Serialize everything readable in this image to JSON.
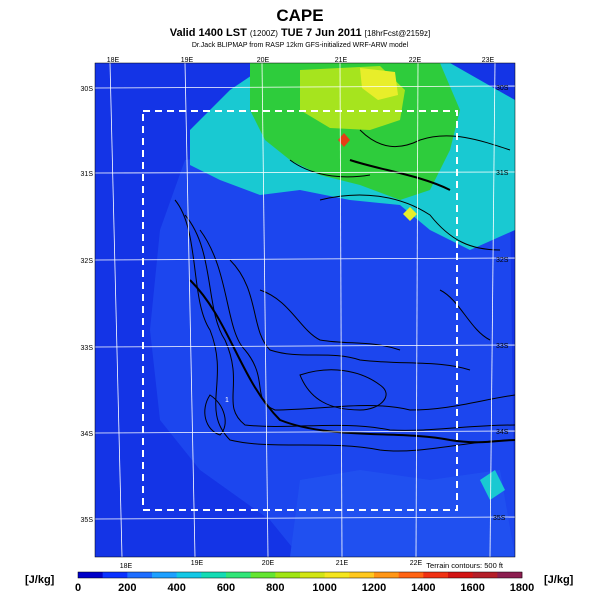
{
  "header": {
    "title": "CAPE",
    "subtitle_main": "Valid 1400 LST",
    "subtitle_utc": "(1200Z)",
    "subtitle_date": "TUE 7 Jun 2011",
    "subtitle_fcst": "[18hrFcst@2159z]",
    "credit": "Dr.Jack BLIPMAP from RASP 12km GFS-initialized WRF-ARW model"
  },
  "map": {
    "lon_labels_top": [
      "18E",
      "19E",
      "20E",
      "21E",
      "22E",
      "23E"
    ],
    "lon_labels_bottom": [
      "18E",
      "19E",
      "20E",
      "21E",
      "22E"
    ],
    "lat_labels_left": [
      "30S",
      "31S",
      "32S",
      "33S",
      "34S",
      "35S"
    ],
    "lat_labels_right": [
      "30S",
      "31S",
      "32S",
      "33S",
      "34S",
      "35S"
    ],
    "marker_label": "1",
    "terrain_note": "Terrain contours: 500 ft",
    "colors": {
      "ocean": "#1434e6",
      "cape_mid": "#19c9d2",
      "cape_high": "#2ecc3c",
      "cape_peak": "#e8ee2a",
      "cape_spot": "#e63c16"
    }
  },
  "legend": {
    "unit_left": "[J/kg]",
    "unit_right": "[J/kg]",
    "ticks": [
      "0",
      "200",
      "400",
      "600",
      "800",
      "1000",
      "1200",
      "1400",
      "1600",
      "1800"
    ],
    "colors": [
      "#0000c8",
      "#0a32ff",
      "#1e6eff",
      "#1ea0ff",
      "#14c8e6",
      "#14dcb4",
      "#32e678",
      "#64e632",
      "#a0e614",
      "#d2e614",
      "#f5e61e",
      "#ffc81e",
      "#ff9616",
      "#ff6414",
      "#f03214",
      "#d21414",
      "#b41e28",
      "#8c1e50"
    ]
  }
}
